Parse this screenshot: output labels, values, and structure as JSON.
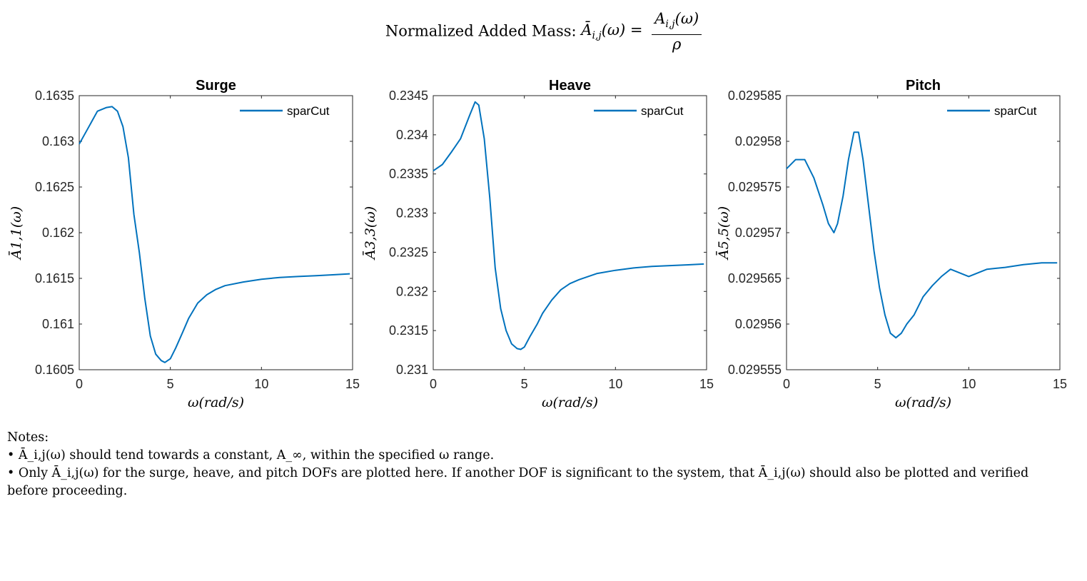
{
  "figure": {
    "title_text": "Normalized Added Mass:",
    "title_lhs": "Ā",
    "title_lhs_sub": "i,j",
    "title_lhs_arg": "(ω) =",
    "title_num": "A",
    "title_num_sub": "i,j",
    "title_num_arg": "(ω)",
    "title_den": "ρ"
  },
  "notes": {
    "heading": "Notes:",
    "bullets": [
      "• Ā_i,j(ω) should tend towards a constant, A_∞, within the specified ω range.",
      "• Only Ā_i,j(ω) for the surge, heave, and pitch DOFs are plotted here. If another DOF is significant to the system, that Ā_i,j(ω) should also be plotted and verified before proceeding."
    ]
  },
  "colors": {
    "series": "#0072BD",
    "axis": "#262626",
    "text": "#000000"
  },
  "chart_data": [
    {
      "type": "line",
      "title": "Surge",
      "xlabel": "ω(rad/s)",
      "ylabel": "Ā1,1(ω)",
      "xlim": [
        0,
        15
      ],
      "ylim": [
        0.1605,
        0.1635
      ],
      "xticks": [
        "0",
        "5",
        "10",
        "15"
      ],
      "yticks": [
        "0.1605",
        "0.161",
        "0.1615",
        "0.162",
        "0.1625",
        "0.163",
        "0.1635"
      ],
      "legend": "top-right",
      "grid": false,
      "series": [
        {
          "name": "sparCut",
          "x": [
            0,
            0.5,
            1,
            1.5,
            1.8,
            2.1,
            2.4,
            2.7,
            3,
            3.3,
            3.6,
            3.9,
            4.2,
            4.5,
            4.7,
            5,
            5.3,
            5.7,
            6,
            6.5,
            7,
            7.5,
            8,
            9,
            10,
            11,
            12,
            13,
            14,
            14.85
          ],
          "y": [
            0.16297,
            0.16315,
            0.16333,
            0.16337,
            0.16338,
            0.16333,
            0.16316,
            0.16282,
            0.1622,
            0.16178,
            0.16128,
            0.16087,
            0.16067,
            0.1606,
            0.16058,
            0.16062,
            0.16074,
            0.16092,
            0.16106,
            0.16123,
            0.16132,
            0.16138,
            0.16142,
            0.16146,
            0.16149,
            0.16151,
            0.16152,
            0.16153,
            0.16154,
            0.16155
          ]
        }
      ]
    },
    {
      "type": "line",
      "title": "Heave",
      "xlabel": "ω(rad/s)",
      "ylabel": "Ā3,3(ω)",
      "xlim": [
        0,
        15
      ],
      "ylim": [
        0.231,
        0.2345
      ],
      "xticks": [
        "0",
        "5",
        "10",
        "15"
      ],
      "yticks": [
        "0.231",
        "0.2315",
        "0.232",
        "0.2325",
        "0.233",
        "0.2335",
        "0.234",
        "0.2345"
      ],
      "legend": "top-right",
      "grid": false,
      "series": [
        {
          "name": "sparCut",
          "x": [
            0,
            0.5,
            1,
            1.5,
            2,
            2.3,
            2.5,
            2.8,
            3.1,
            3.4,
            3.7,
            4,
            4.3,
            4.6,
            4.8,
            5,
            5.3,
            5.7,
            6,
            6.5,
            7,
            7.5,
            8,
            9,
            10,
            11,
            12,
            13,
            14,
            14.85
          ],
          "y": [
            0.23354,
            0.23362,
            0.23378,
            0.23395,
            0.23425,
            0.23442,
            0.23438,
            0.23395,
            0.2332,
            0.2323,
            0.23178,
            0.2315,
            0.23133,
            0.23127,
            0.23126,
            0.23129,
            0.23142,
            0.23158,
            0.23172,
            0.23189,
            0.23202,
            0.2321,
            0.23215,
            0.23223,
            0.23227,
            0.2323,
            0.23232,
            0.23233,
            0.23234,
            0.23235
          ]
        }
      ]
    },
    {
      "type": "line",
      "title": "Pitch",
      "xlabel": "ω(rad/s)",
      "ylabel": "Ā5,5(ω)",
      "xlim": [
        0,
        15
      ],
      "ylim": [
        0.029555,
        0.029585
      ],
      "xticks": [
        "0",
        "5",
        "10",
        "15"
      ],
      "yticks": [
        "0.029555",
        "0.02956",
        "0.029565",
        "0.02957",
        "0.029575",
        "0.02958",
        "0.029585"
      ],
      "legend": "top-right",
      "grid": false,
      "series": [
        {
          "name": "sparCut",
          "x": [
            0,
            0.5,
            1,
            1.5,
            2,
            2.3,
            2.6,
            2.8,
            3.1,
            3.4,
            3.7,
            3.95,
            4.2,
            4.5,
            4.8,
            5.1,
            5.4,
            5.7,
            6,
            6.3,
            6.6,
            7,
            7.5,
            8,
            8.5,
            9,
            10,
            11,
            12,
            13,
            14,
            14.85
          ],
          "y": [
            0.029577,
            0.029578,
            0.029578,
            0.029576,
            0.029573,
            0.029571,
            0.02957,
            0.029571,
            0.029574,
            0.029578,
            0.029581,
            0.029581,
            0.029578,
            0.029573,
            0.029568,
            0.029564,
            0.029561,
            0.029559,
            0.0295585,
            0.029559,
            0.02956,
            0.029561,
            0.029563,
            0.0295642,
            0.0295652,
            0.029566,
            0.0295652,
            0.029566,
            0.0295662,
            0.0295665,
            0.0295667,
            0.0295667
          ]
        }
      ]
    }
  ]
}
